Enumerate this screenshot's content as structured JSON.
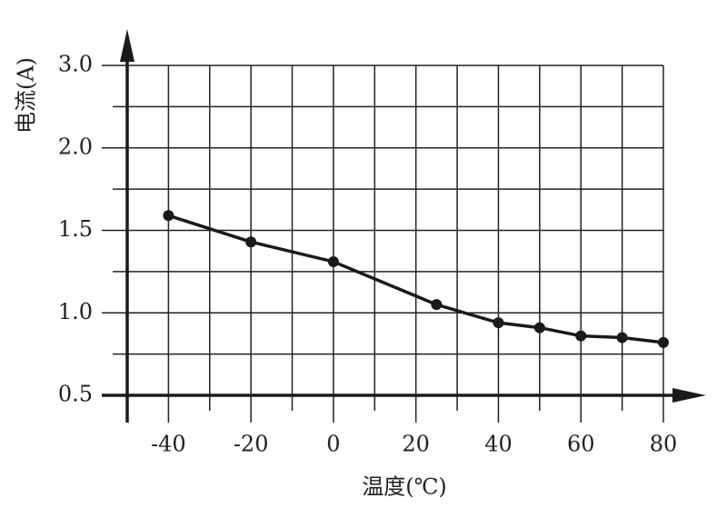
{
  "chart_data": {
    "type": "line",
    "x_label": "温度(℃)",
    "y_label": "电流(A)",
    "x": [
      -40,
      -20,
      0,
      25,
      40,
      50,
      60,
      70,
      80
    ],
    "series": [
      {
        "color": "#1a1a1a",
        "values": [
          1.59,
          1.43,
          1.31,
          1.05,
          0.94,
          0.91,
          0.86,
          0.85,
          0.82
        ]
      }
    ],
    "xlim": [
      -50,
      80
    ],
    "xticks": [
      -40,
      -20,
      0,
      20,
      40,
      60,
      80
    ],
    "minor_xticks": [
      -30,
      -10,
      10,
      30,
      50,
      70
    ],
    "ylim": [
      0.5,
      3
    ],
    "yticks": [
      {
        "value": 0.5,
        "label": "0.5"
      },
      {
        "value": 1,
        "label": "1.0"
      },
      1.5,
      {
        "value": 2,
        "label": "2.0"
      },
      {
        "value": 3,
        "label": "3.0"
      }
    ],
    "minor_yticks": [
      0.75,
      1.25,
      1.75,
      2.5
    ],
    "grid": true
  }
}
